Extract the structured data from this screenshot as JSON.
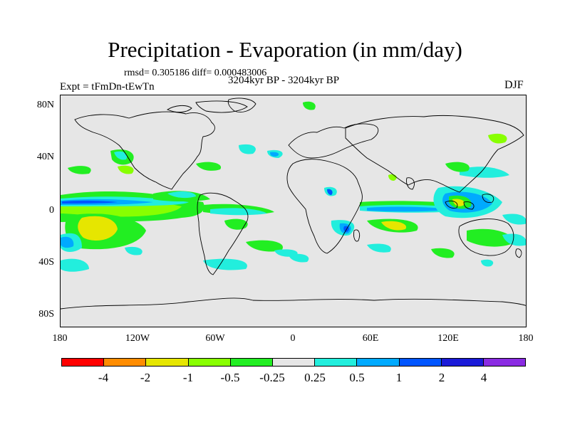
{
  "title": "Precipitation - Evaporation (in mm/day)",
  "stats": "rmsd= 0.305186 diff= 0.000483006",
  "period": "3204kyr BP - 3204kyr BP",
  "experiment": "Expt = tFmDn-tEwTn",
  "season": "DJF",
  "lat_labels": [
    "80N",
    "40N",
    "0",
    "40S",
    "80S"
  ],
  "lon_labels": [
    "180",
    "120W",
    "60W",
    "0",
    "60E",
    "120E",
    "180"
  ],
  "colorbar": {
    "colors": [
      "#ff0000",
      "#ff8c00",
      "#e6e600",
      "#88ff00",
      "#22ee22",
      "#e6e6e6",
      "#22eedd",
      "#00aaff",
      "#0055ff",
      "#1a1ad8",
      "#8a2be2"
    ],
    "labels": [
      "-4",
      "-2",
      "-1",
      "-0.5",
      "-0.25",
      "0.25",
      "0.5",
      "1",
      "2",
      "4"
    ]
  },
  "palette": {
    "ocean": "#e6e6e6",
    "dry_weak": "#88ff00",
    "dry_mid": "#22ee22",
    "dry_strong": "#e6e600",
    "wet_weak": "#22eedd",
    "wet_mid": "#00aaff",
    "wet_strong": "#0055ff",
    "wet_max": "#1a1ad8"
  }
}
